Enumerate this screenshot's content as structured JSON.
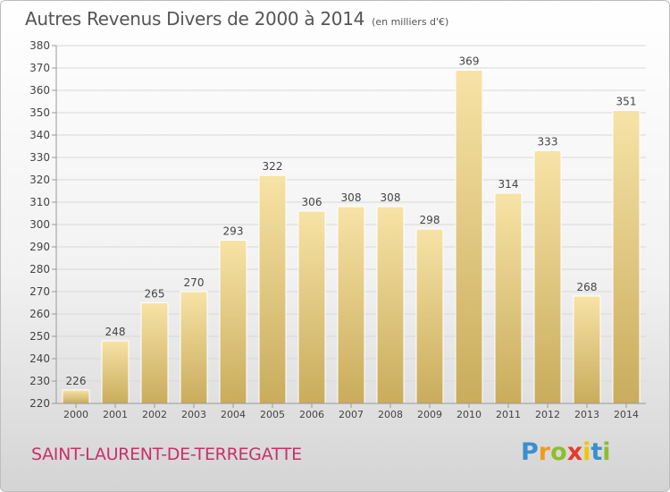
{
  "header": {
    "title": "Autres Revenus Divers de 2000 à 2014",
    "unit": "(en milliers d'€)"
  },
  "footer": {
    "commune": "SAINT-LAURENT-DE-TERREGATTE",
    "logo_letters": [
      "P",
      "r",
      "o",
      "x",
      "i",
      "t",
      "i"
    ],
    "logo_colors": [
      "#3a8fd0",
      "#f29a1e",
      "#8dbe2c",
      "#e63a2c",
      "#f5c400",
      "#3a8fd0",
      "#8dbe2c"
    ]
  },
  "colors": {
    "bar_top": "#f7e3a6",
    "bar_bottom": "#c9ac5c",
    "grid": "#d8d8d8",
    "text": "#444444",
    "commune": "#c8306a"
  },
  "chart_data": {
    "type": "bar",
    "categories": [
      "2000",
      "2001",
      "2002",
      "2003",
      "2004",
      "2005",
      "2006",
      "2007",
      "2008",
      "2009",
      "2010",
      "2011",
      "2012",
      "2013",
      "2014"
    ],
    "values": [
      226,
      248,
      265,
      270,
      293,
      322,
      306,
      308,
      308,
      298,
      369,
      314,
      333,
      268,
      351
    ],
    "data_labels": [
      "226",
      "248",
      "265",
      "270",
      "293",
      "322",
      "306",
      "308",
      "308",
      "298",
      "369",
      "314",
      "333",
      "268",
      "351"
    ],
    "yticks": [
      220,
      230,
      240,
      250,
      260,
      270,
      280,
      290,
      300,
      310,
      320,
      330,
      340,
      350,
      360,
      370,
      380
    ],
    "ylim": [
      220,
      380
    ],
    "grid": true
  }
}
